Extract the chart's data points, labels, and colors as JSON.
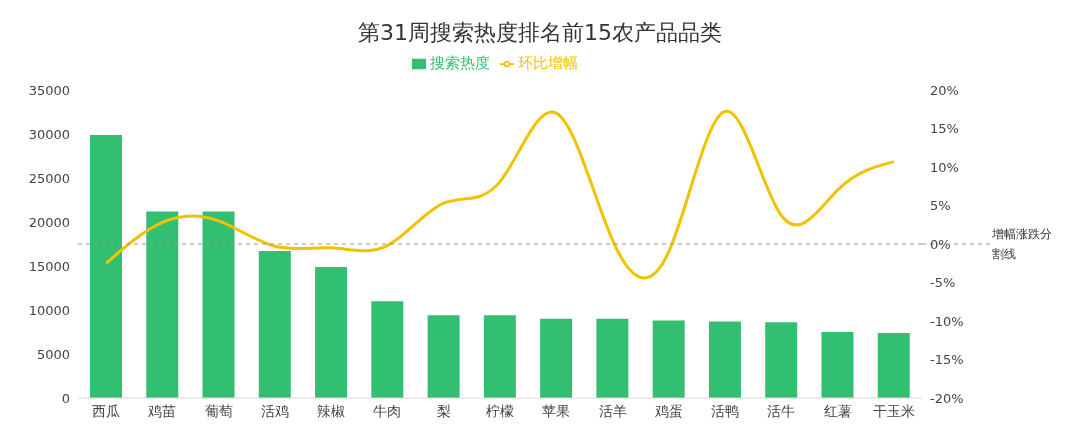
{
  "chart_data": {
    "type": "bar",
    "title": "第31周搜索热度排名前15农产品品类",
    "categories": [
      "西瓜",
      "鸡苗",
      "葡萄",
      "活鸡",
      "辣椒",
      "牛肉",
      "梨",
      "柠檬",
      "苹果",
      "活羊",
      "鸡蛋",
      "活鸭",
      "活牛",
      "红薯",
      "干玉米"
    ],
    "series": [
      {
        "name": "搜索热度",
        "color": "#33bf72",
        "values": [
          29900,
          21200,
          21200,
          16700,
          14900,
          11000,
          9400,
          9400,
          9000,
          9000,
          8800,
          8700,
          8600,
          7500,
          7400
        ]
      },
      {
        "name": "环比增幅",
        "type": "line",
        "axis": "y2",
        "color": "#f2c200",
        "values": [
          -2.5,
          2.8,
          3.0,
          -0.3,
          -0.5,
          -0.2,
          5.3,
          8.1,
          17.0,
          0.5,
          -1.0,
          17.2,
          3.7,
          7.0,
          10.7
        ]
      }
    ],
    "ylim": [
      0,
      35000
    ],
    "yticks": [
      0,
      5000,
      10000,
      15000,
      20000,
      25000,
      30000,
      35000
    ],
    "y2lim": [
      -20,
      20
    ],
    "y2ticks": [
      {
        "value": -20,
        "label": "-20%"
      },
      {
        "value": -15,
        "label": "-15%"
      },
      {
        "value": -10,
        "label": "-10%"
      },
      {
        "value": -5,
        "label": "-5%"
      },
      {
        "value": 0,
        "label": "0%"
      },
      {
        "value": 5,
        "label": "5%"
      },
      {
        "value": 10,
        "label": "10%"
      },
      {
        "value": 15,
        "label": "15%"
      },
      {
        "value": 20,
        "label": "20%"
      }
    ],
    "ref_lines": [
      {
        "axis": "y2",
        "value": 0,
        "label": "增幅涨跌分割线",
        "color": "#999999",
        "line_style": "dashed"
      }
    ],
    "grid": false,
    "legend": "top",
    "marker": "none"
  }
}
